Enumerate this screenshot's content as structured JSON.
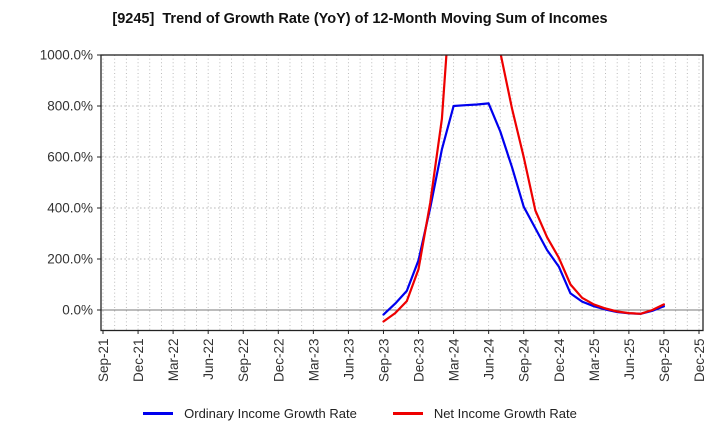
{
  "title": "[9245]  Trend of Growth Rate (YoY) of 12-Month Moving Sum of Incomes",
  "legend": {
    "position": "bottom",
    "items": [
      {
        "label": "Ordinary Income Growth Rate",
        "color": "#0000ee"
      },
      {
        "label": "Net Income Growth Rate",
        "color": "#ee0000"
      }
    ]
  },
  "chart_data": {
    "type": "line",
    "title": "[9245]  Trend of Growth Rate (YoY) of 12-Month Moving Sum of Incomes",
    "x_axis": {
      "tick_labels": [
        "Sep-21",
        "Dec-21",
        "Mar-22",
        "Jun-22",
        "Sep-22",
        "Dec-22",
        "Mar-23",
        "Jun-23",
        "Sep-23",
        "Dec-23",
        "Mar-24",
        "Jun-24",
        "Sep-24",
        "Dec-24",
        "Mar-25",
        "Jun-25",
        "Sep-25",
        "Dec-25"
      ],
      "months_total": 52,
      "monthly_gridlines": true
    },
    "y_axis": {
      "ticks": [
        0,
        200,
        400,
        600,
        800,
        1000
      ],
      "tick_labels": [
        "0.0%",
        "200.0%",
        "400.0%",
        "600.0%",
        "800.0%",
        "1000.0%"
      ],
      "ylim": [
        -80,
        1000
      ],
      "unit": "%"
    },
    "x": [
      "Sep-23",
      "Oct-23",
      "Nov-23",
      "Dec-23",
      "Jan-24",
      "Feb-24",
      "Mar-24",
      "Apr-24",
      "May-24",
      "Jun-24",
      "Jul-24",
      "Aug-24",
      "Sep-24",
      "Oct-24",
      "Nov-24",
      "Dec-24",
      "Jan-25",
      "Feb-25",
      "Mar-25",
      "Apr-25",
      "May-25",
      "Jun-25",
      "Jul-25",
      "Aug-25",
      "Sep-25"
    ],
    "series": [
      {
        "name": "Ordinary Income Growth Rate",
        "color": "#0000ee",
        "clipped_above_ymax": false,
        "values": [
          -18,
          25,
          75,
          195,
          400,
          630,
          800,
          803,
          806,
          810,
          700,
          560,
          405,
          320,
          235,
          170,
          65,
          33,
          15,
          2,
          -8,
          -13,
          -15,
          -3,
          15
        ]
      },
      {
        "name": "Net Income Growth Rate",
        "color": "#ee0000",
        "clipped_above_ymax": true,
        "values": [
          -45,
          -12,
          35,
          160,
          420,
          750,
          1400,
          2000,
          1900,
          1500,
          1010,
          790,
          600,
          390,
          285,
          205,
          100,
          48,
          22,
          6,
          -6,
          -12,
          -15,
          0,
          22
        ]
      }
    ],
    "legend_position": "bottom",
    "grid": true
  }
}
